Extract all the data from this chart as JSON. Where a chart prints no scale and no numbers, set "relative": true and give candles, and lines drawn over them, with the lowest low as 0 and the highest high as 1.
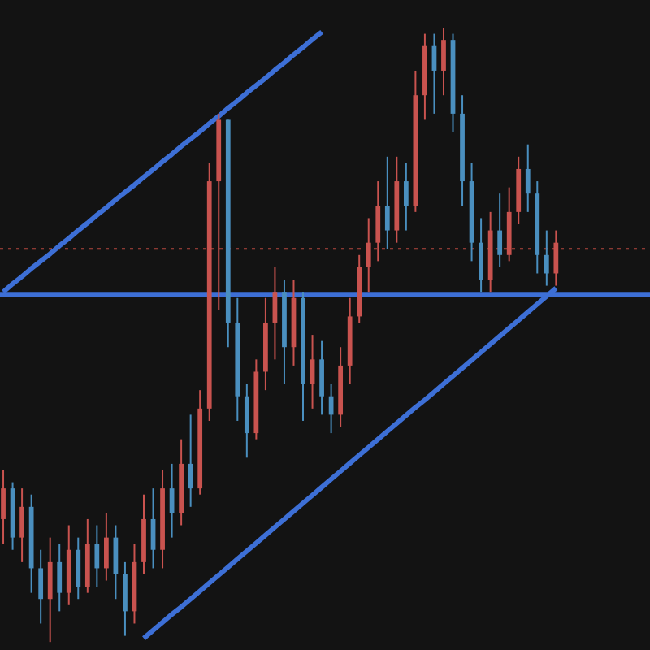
{
  "chart_data": {
    "type": "candlestick",
    "relative": true,
    "categories": [
      null,
      null,
      null,
      null,
      null,
      null,
      null,
      null,
      null,
      null,
      null,
      null,
      null,
      null,
      null,
      null,
      null,
      null,
      null,
      null,
      null,
      null,
      null,
      null,
      null,
      null,
      null,
      null,
      null,
      null,
      null,
      null,
      null,
      null,
      null,
      null,
      null,
      null,
      null,
      null,
      null,
      null,
      null,
      null,
      null,
      null,
      null,
      null,
      null,
      null,
      null,
      null,
      null,
      null,
      null,
      null,
      null,
      null,
      null,
      null
    ],
    "ohlc": [
      [
        0.2,
        0.28,
        0.16,
        0.25
      ],
      [
        0.25,
        0.26,
        0.15,
        0.17
      ],
      [
        0.17,
        0.25,
        0.13,
        0.22
      ],
      [
        0.22,
        0.24,
        0.08,
        0.12
      ],
      [
        0.12,
        0.15,
        0.03,
        0.07
      ],
      [
        0.07,
        0.17,
        0.0,
        0.13
      ],
      [
        0.13,
        0.16,
        0.05,
        0.08
      ],
      [
        0.08,
        0.19,
        0.06,
        0.15
      ],
      [
        0.15,
        0.17,
        0.07,
        0.09
      ],
      [
        0.09,
        0.2,
        0.08,
        0.16
      ],
      [
        0.16,
        0.19,
        0.09,
        0.12
      ],
      [
        0.12,
        0.21,
        0.1,
        0.17
      ],
      [
        0.17,
        0.19,
        0.07,
        0.11
      ],
      [
        0.11,
        0.13,
        0.01,
        0.05
      ],
      [
        0.05,
        0.16,
        0.03,
        0.13
      ],
      [
        0.13,
        0.24,
        0.11,
        0.2
      ],
      [
        0.2,
        0.25,
        0.12,
        0.15
      ],
      [
        0.15,
        0.28,
        0.12,
        0.25
      ],
      [
        0.25,
        0.29,
        0.17,
        0.21
      ],
      [
        0.21,
        0.33,
        0.19,
        0.29
      ],
      [
        0.29,
        0.37,
        0.22,
        0.25
      ],
      [
        0.25,
        0.41,
        0.24,
        0.38
      ],
      [
        0.38,
        0.78,
        0.36,
        0.75
      ],
      [
        0.75,
        0.86,
        0.54,
        0.85
      ],
      [
        0.85,
        0.85,
        0.48,
        0.52
      ],
      [
        0.52,
        0.56,
        0.36,
        0.4
      ],
      [
        0.4,
        0.42,
        0.3,
        0.34
      ],
      [
        0.34,
        0.46,
        0.33,
        0.44
      ],
      [
        0.44,
        0.56,
        0.41,
        0.52
      ],
      [
        0.52,
        0.61,
        0.46,
        0.57
      ],
      [
        0.57,
        0.59,
        0.42,
        0.48
      ],
      [
        0.48,
        0.59,
        0.45,
        0.56
      ],
      [
        0.56,
        0.57,
        0.36,
        0.42
      ],
      [
        0.42,
        0.5,
        0.38,
        0.46
      ],
      [
        0.46,
        0.49,
        0.37,
        0.4
      ],
      [
        0.4,
        0.42,
        0.34,
        0.37
      ],
      [
        0.37,
        0.48,
        0.35,
        0.45
      ],
      [
        0.45,
        0.56,
        0.42,
        0.53
      ],
      [
        0.53,
        0.63,
        0.52,
        0.61
      ],
      [
        0.61,
        0.69,
        0.57,
        0.65
      ],
      [
        0.65,
        0.75,
        0.62,
        0.71
      ],
      [
        0.71,
        0.79,
        0.64,
        0.67
      ],
      [
        0.67,
        0.79,
        0.65,
        0.75
      ],
      [
        0.75,
        0.78,
        0.67,
        0.71
      ],
      [
        0.71,
        0.93,
        0.7,
        0.89
      ],
      [
        0.89,
        0.99,
        0.85,
        0.97
      ],
      [
        0.97,
        0.99,
        0.86,
        0.93
      ],
      [
        0.93,
        1.0,
        0.89,
        0.98
      ],
      [
        0.98,
        0.99,
        0.83,
        0.86
      ],
      [
        0.86,
        0.89,
        0.71,
        0.75
      ],
      [
        0.75,
        0.78,
        0.62,
        0.65
      ],
      [
        0.65,
        0.69,
        0.57,
        0.59
      ],
      [
        0.59,
        0.7,
        0.57,
        0.67
      ],
      [
        0.67,
        0.73,
        0.61,
        0.63
      ],
      [
        0.63,
        0.74,
        0.62,
        0.7
      ],
      [
        0.7,
        0.79,
        0.68,
        0.77
      ],
      [
        0.77,
        0.81,
        0.7,
        0.73
      ],
      [
        0.73,
        0.75,
        0.6,
        0.63
      ],
      [
        0.63,
        0.67,
        0.58,
        0.6
      ],
      [
        0.6,
        0.67,
        0.58,
        0.65
      ]
    ],
    "colors": [
      "#c9534f",
      "#4a8fbf",
      "#c9534f",
      "#4a8fbf",
      "#4a8fbf",
      "#c9534f",
      "#4a8fbf",
      "#c9534f",
      "#4a8fbf",
      "#c9534f",
      "#4a8fbf",
      "#c9534f",
      "#4a8fbf",
      "#4a8fbf",
      "#c9534f",
      "#c9534f",
      "#4a8fbf",
      "#c9534f",
      "#4a8fbf",
      "#c9534f",
      "#4a8fbf",
      "#c9534f",
      "#c9534f",
      "#c9534f",
      "#4a8fbf",
      "#4a8fbf",
      "#4a8fbf",
      "#c9534f",
      "#c9534f",
      "#c9534f",
      "#4a8fbf",
      "#c9534f",
      "#4a8fbf",
      "#c9534f",
      "#4a8fbf",
      "#4a8fbf",
      "#c9534f",
      "#c9534f",
      "#c9534f",
      "#c9534f",
      "#c9534f",
      "#4a8fbf",
      "#c9534f",
      "#4a8fbf",
      "#c9534f",
      "#c9534f",
      "#4a8fbf",
      "#c9534f",
      "#4a8fbf",
      "#4a8fbf",
      "#4a8fbf",
      "#4a8fbf",
      "#c9534f",
      "#4a8fbf",
      "#c9534f",
      "#c9534f",
      "#4a8fbf",
      "#4a8fbf",
      "#4a8fbf",
      "#c9534f"
    ],
    "series": [
      {
        "type": "line",
        "color": "#3d6fd6",
        "values": [
          0.57,
          0.583,
          0.595,
          0.608,
          0.62,
          0.632,
          0.645,
          0.657,
          0.67,
          0.682,
          0.695,
          0.707,
          0.72,
          0.732,
          0.744,
          0.757,
          0.769,
          0.782,
          0.794,
          0.807,
          0.819,
          0.831,
          0.844,
          0.856,
          0.869,
          0.881,
          0.894,
          0.906,
          0.918,
          0.931,
          0.943,
          0.956,
          0.968,
          0.981,
          0.993,
          null,
          null,
          null,
          null,
          null,
          null,
          null,
          null,
          null,
          null,
          null,
          null,
          null,
          null,
          null,
          null,
          null,
          null,
          null,
          null,
          null,
          null,
          null,
          null,
          null
        ]
      },
      {
        "type": "line",
        "color": "#3d6fd6",
        "values": [
          null,
          null,
          null,
          null,
          null,
          null,
          null,
          null,
          null,
          null,
          null,
          null,
          null,
          null,
          null,
          0.006,
          0.019,
          0.032,
          0.045,
          0.057,
          0.07,
          0.083,
          0.096,
          0.109,
          0.122,
          0.135,
          0.148,
          0.161,
          0.174,
          0.187,
          0.2,
          0.213,
          0.226,
          0.239,
          0.252,
          0.265,
          0.278,
          0.291,
          0.304,
          0.317,
          0.33,
          0.343,
          0.356,
          0.369,
          0.382,
          0.394,
          0.407,
          0.42,
          0.433,
          0.446,
          0.459,
          0.472,
          0.485,
          0.498,
          0.511,
          0.524,
          0.537,
          0.55,
          0.563,
          0.576
        ]
      }
    ],
    "ref_lines": [
      {
        "axis": "y",
        "value": 0.566,
        "color": "#3d6fd6"
      },
      {
        "axis": "y",
        "value": 0.64,
        "color": "#b5473f",
        "line_style": "dotted"
      }
    ]
  }
}
